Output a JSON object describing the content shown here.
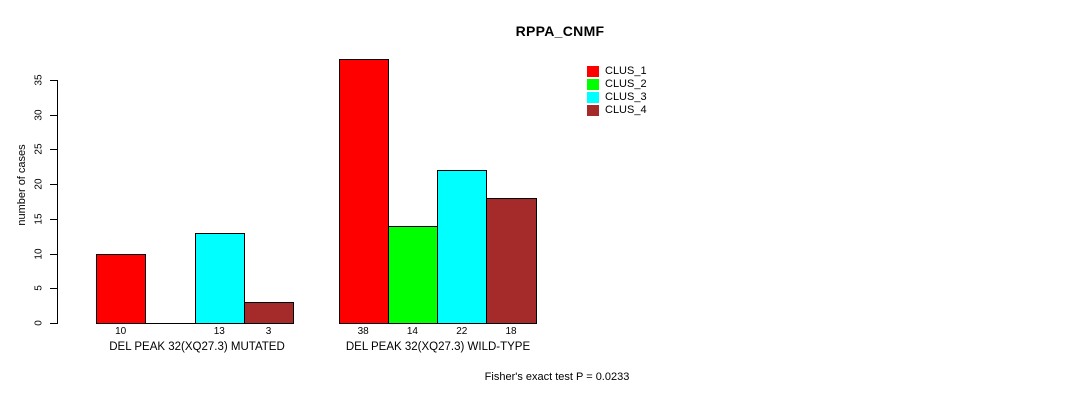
{
  "title": "RPPA_CNMF",
  "footer": "Fisher's exact test P = 0.0233",
  "chart_data": {
    "type": "bar",
    "title": "RPPA_CNMF",
    "ylabel": "number of cases",
    "xlabel": "",
    "ylim": [
      0,
      38
    ],
    "yticks": [
      0,
      5,
      10,
      15,
      20,
      25,
      30,
      35
    ],
    "grid": false,
    "legend_position": "top-right",
    "categories": [
      "DEL PEAK 32(XQ27.3) MUTATED",
      "DEL PEAK 32(XQ27.3) WILD-TYPE"
    ],
    "series": [
      {
        "name": "CLUS_1",
        "color": "#FF0000",
        "values": [
          10,
          38
        ]
      },
      {
        "name": "CLUS_2",
        "color": "#00FF00",
        "values": [
          0,
          14
        ]
      },
      {
        "name": "CLUS_3",
        "color": "#00FFFF",
        "values": [
          13,
          22
        ]
      },
      {
        "name": "CLUS_4",
        "color": "#A52A2A",
        "values": [
          3,
          18
        ]
      }
    ],
    "bar_value_labels": [
      [
        "10",
        null,
        "13",
        "3"
      ],
      [
        "38",
        "14",
        "22",
        "18"
      ]
    ],
    "annotation": "Fisher's exact test P = 0.0233"
  },
  "colors": {
    "background": "#FFFFFF",
    "axis": "#000000",
    "text": "#000000"
  }
}
